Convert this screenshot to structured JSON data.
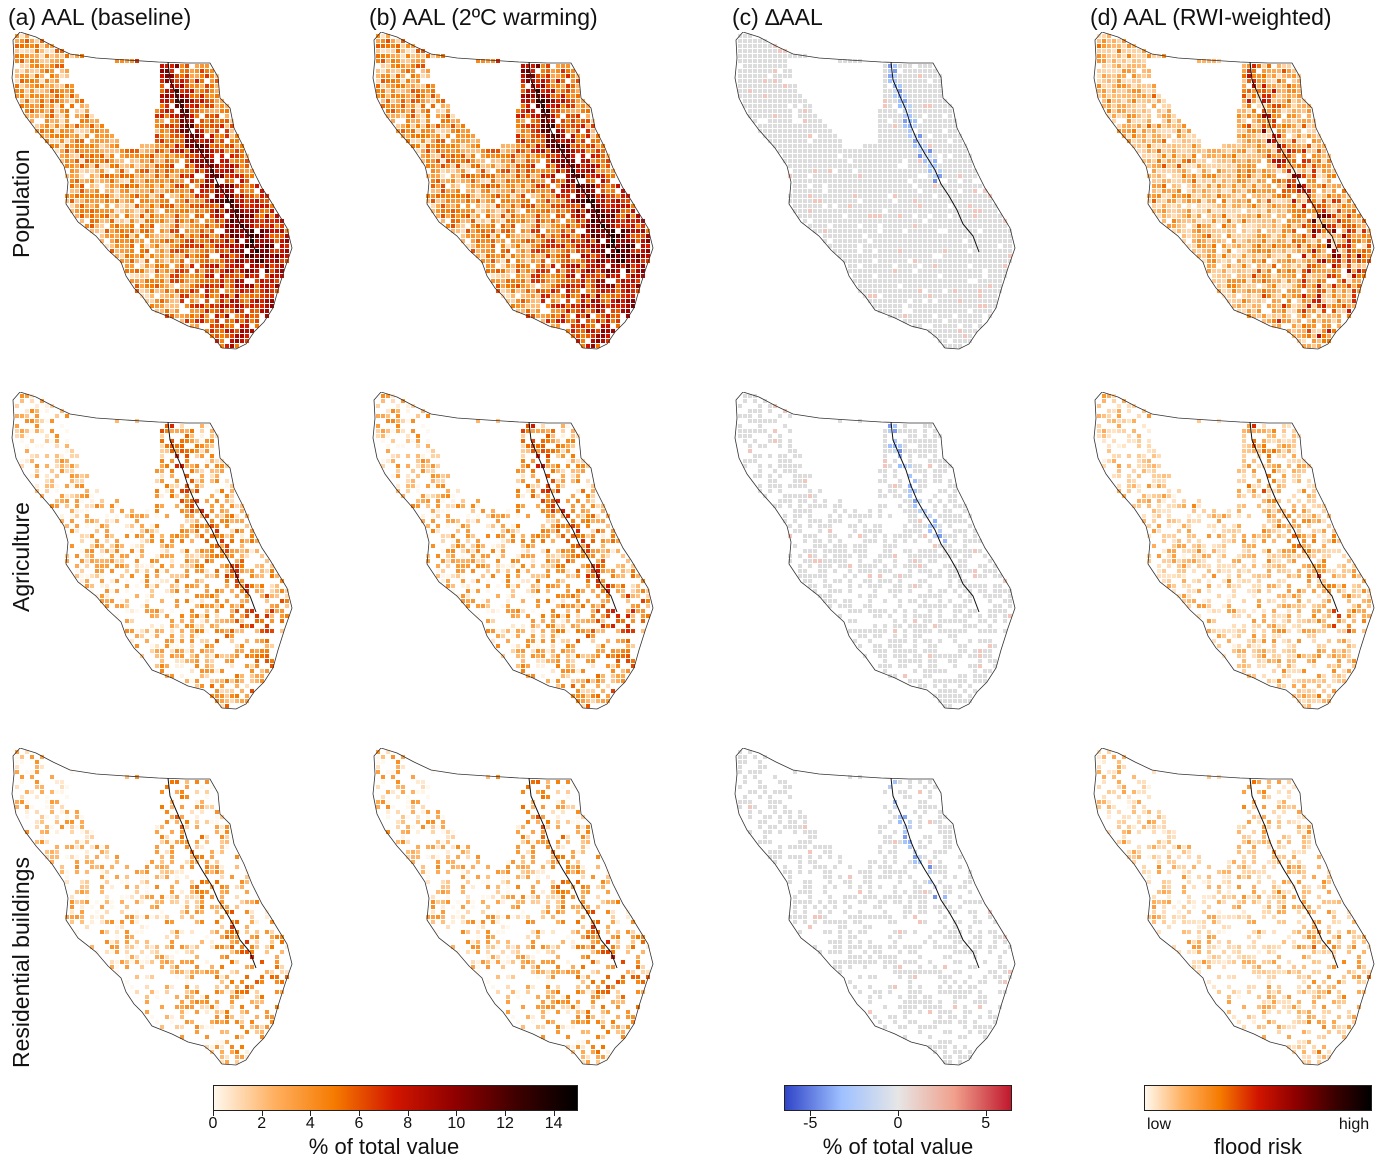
{
  "columns": [
    {
      "title": "(a) AAL (baseline)",
      "kind": "seq"
    },
    {
      "title": "(b) AAL (2ºC warming)",
      "kind": "seq"
    },
    {
      "title": "(c) ∆AAL",
      "kind": "div"
    },
    {
      "title": "(d) AAL (RWI-weighted)",
      "kind": "risk"
    }
  ],
  "rows": [
    {
      "label": "Population",
      "density": 0.92,
      "intensity": 0.55
    },
    {
      "label": "Agriculture",
      "density": 0.55,
      "intensity": 0.25
    },
    {
      "label": "Residential buildings",
      "density": 0.45,
      "intensity": 0.2
    }
  ],
  "colorbars": {
    "aal": {
      "label": "% of total value",
      "ticks": [
        "0",
        "2",
        "4",
        "6",
        "8",
        "10",
        "12",
        "14"
      ],
      "range": [
        0,
        15
      ],
      "colors": [
        "#fff8ee",
        "#ffb060",
        "#f57a00",
        "#d11500",
        "#8e0000",
        "#3e0000",
        "#000000"
      ]
    },
    "delta": {
      "label": "% of total value",
      "ticks": [
        "-5",
        "0",
        "5"
      ],
      "tick_values": [
        -5,
        0,
        5
      ],
      "range": [
        -6.5,
        6.5
      ],
      "colors": [
        "#3045c8",
        "#9ec0ff",
        "#e6e6e6",
        "#f0a08c",
        "#c0182e"
      ]
    },
    "risk": {
      "label": "flood risk",
      "low": "low",
      "high": "high",
      "colors": [
        "#fff8ee",
        "#ffb060",
        "#f57a00",
        "#d11500",
        "#8e0000",
        "#3e0000",
        "#000000"
      ]
    }
  }
}
